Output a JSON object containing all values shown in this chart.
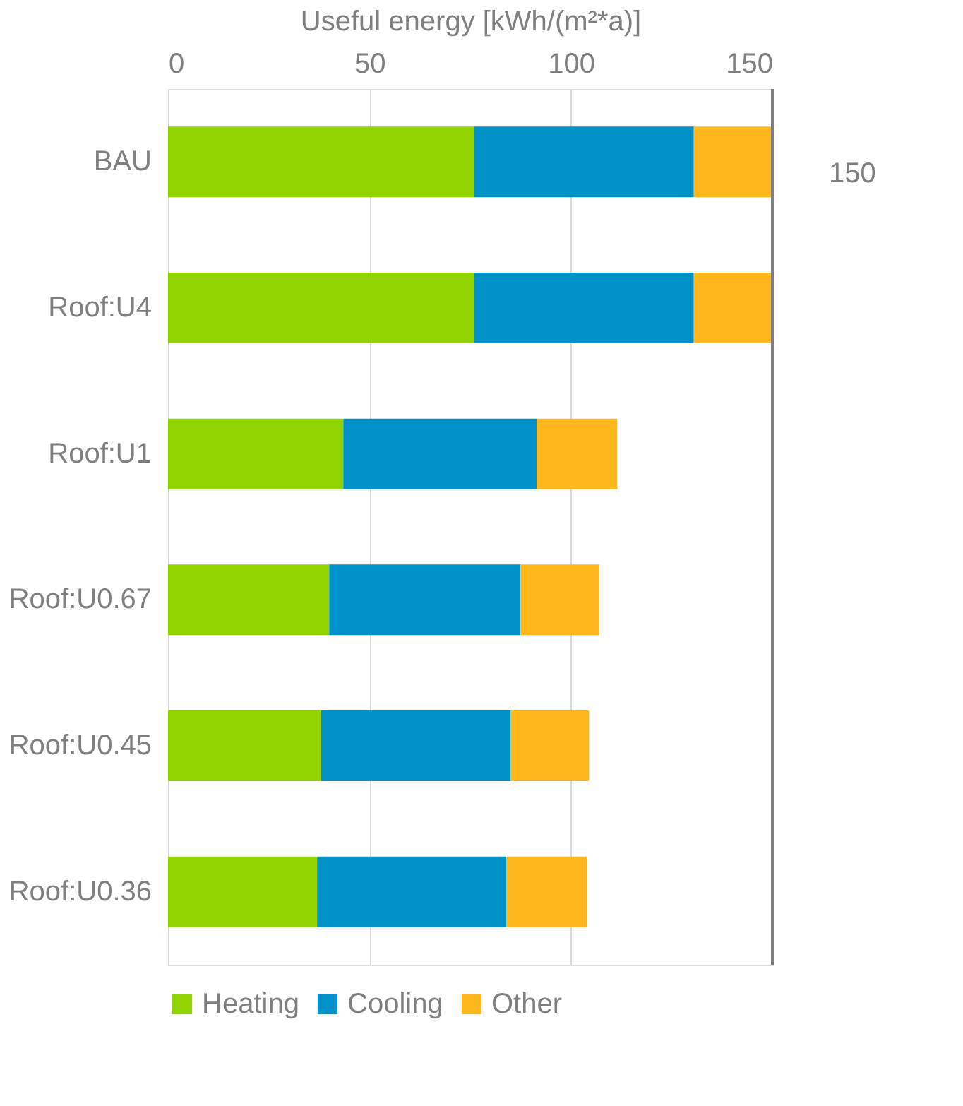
{
  "chart_data": {
    "type": "bar",
    "orientation": "horizontal",
    "stacked": true,
    "xlabel": "Useful energy [kWh/(m²*a)]",
    "categories": [
      "BAU",
      "Roof:U4",
      "Roof:U1",
      "Roof:U0.67",
      "Roof:U0.45",
      "Roof:U0.36"
    ],
    "series": [
      {
        "name": "Heating",
        "color": "#92d400",
        "values": [
          76,
          76,
          43.5,
          40,
          38,
          37
        ]
      },
      {
        "name": "Cooling",
        "color": "#0092c8",
        "values": [
          54.5,
          54.5,
          48,
          47.5,
          47,
          47
        ]
      },
      {
        "name": "Other",
        "color": "#ffb81c",
        "values": [
          19.5,
          19.5,
          20,
          19.5,
          19.5,
          20
        ]
      }
    ],
    "xlim": [
      0,
      150
    ],
    "xticks": [
      0,
      50,
      100,
      150
    ],
    "grid": "x",
    "legend": "bottom",
    "ref_lines": [
      {
        "axis": "x",
        "value": 150,
        "label": "150",
        "color": "#7f7f7f"
      }
    ]
  }
}
